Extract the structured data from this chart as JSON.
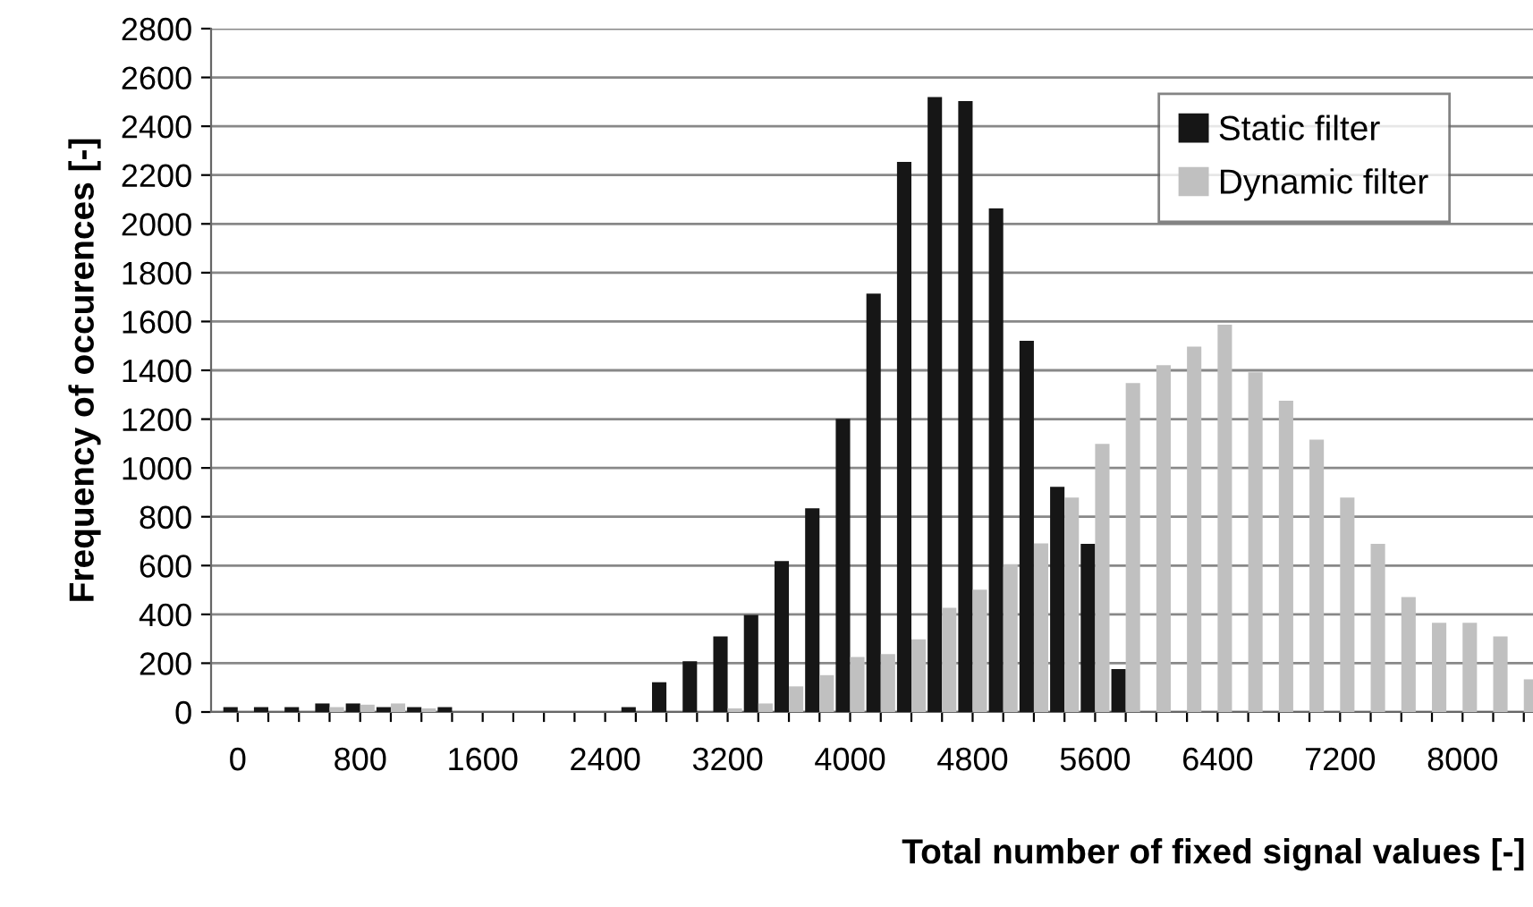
{
  "chart_data": {
    "type": "bar",
    "xlabel": "Total number of fixed signal values [-]",
    "ylabel": "Frequency of occurences [-]",
    "categories": [
      "0",
      null,
      null,
      null,
      "800",
      null,
      null,
      null,
      "1600",
      null,
      null,
      null,
      "2400",
      null,
      null,
      null,
      "3200",
      null,
      null,
      null,
      "4000",
      null,
      null,
      null,
      "4800",
      null,
      null,
      null,
      "5600",
      null,
      null,
      null,
      "6400",
      null,
      null,
      null,
      "7200",
      null,
      null,
      null,
      "8000",
      null,
      null
    ],
    "series": [
      {
        "name": "Static filter",
        "color": "#161616",
        "values": [
          20,
          20,
          20,
          35,
          35,
          20,
          20,
          20,
          0,
          0,
          0,
          0,
          0,
          20,
          122,
          208,
          310,
          398,
          618,
          835,
          1201,
          1714,
          2254,
          2520,
          2503,
          2063,
          1521,
          923,
          689,
          176,
          0,
          0,
          0,
          0,
          0,
          0,
          0,
          0,
          0,
          0,
          0,
          0,
          0
        ]
      },
      {
        "name": "Dynamic filter",
        "color": "#c0c0c0",
        "values": [
          null,
          null,
          null,
          20,
          30,
          35,
          15,
          null,
          null,
          0,
          0,
          0,
          0,
          0,
          0,
          0,
          15,
          35,
          105,
          151,
          225,
          237,
          298,
          427,
          501,
          606,
          691,
          879,
          1099,
          1348,
          1421,
          1497,
          1587,
          1392,
          1275,
          1116,
          879,
          689,
          471,
          366,
          366,
          310,
          134
        ]
      }
    ],
    "ylim": [
      0,
      2800
    ],
    "yticks": [
      0,
      200,
      400,
      600,
      800,
      1000,
      1200,
      1400,
      1600,
      1800,
      2000,
      2200,
      2400,
      2600,
      2800
    ],
    "grid": "y",
    "legend": "top right"
  }
}
